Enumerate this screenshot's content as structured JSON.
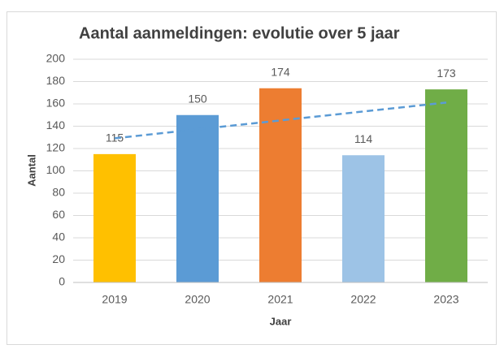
{
  "chart_data": {
    "type": "bar",
    "title": "Aantal aanmeldingen: evolutie over 5 jaar",
    "x_label": "Jaar",
    "y_label": "Aantal",
    "categories": [
      "2019",
      "2020",
      "2021",
      "2022",
      "2023"
    ],
    "values": [
      115,
      150,
      174,
      114,
      173
    ],
    "colors": [
      "#ffc000",
      "#5b9bd5",
      "#ed7d31",
      "#9dc3e6",
      "#70ad47"
    ],
    "ylim": [
      0,
      200
    ],
    "yticks": [
      0,
      20,
      40,
      60,
      80,
      100,
      120,
      140,
      160,
      180,
      200
    ],
    "grid": true,
    "trendline": "linear",
    "trendline_color": "#5b9bd5"
  }
}
